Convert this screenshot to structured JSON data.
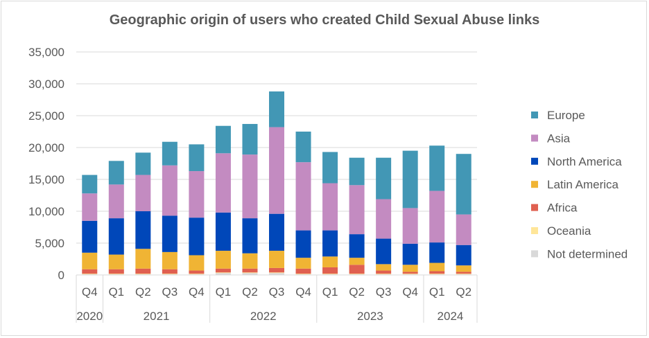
{
  "chart_data": {
    "type": "bar",
    "stacked": true,
    "title": "Geographic origin of users who created Child Sexual Abuse links",
    "categories": [
      "Q4",
      "Q1",
      "Q2",
      "Q3",
      "Q4",
      "Q1",
      "Q2",
      "Q3",
      "Q4",
      "Q1",
      "Q2",
      "Q3",
      "Q4",
      "Q1",
      "Q2"
    ],
    "year_groups": [
      {
        "label": "2020",
        "start": 0,
        "end": 0
      },
      {
        "label": "2021",
        "start": 1,
        "end": 4
      },
      {
        "label": "2022",
        "start": 5,
        "end": 8
      },
      {
        "label": "2023",
        "start": 9,
        "end": 12
      },
      {
        "label": "2024",
        "start": 13,
        "end": 14
      }
    ],
    "yticks": [
      "0",
      "5,000",
      "10,000",
      "15,000",
      "20,000",
      "25,000",
      "30,000",
      "35,000"
    ],
    "ylim": [
      0,
      35000
    ],
    "grid": true,
    "legend_position": "right",
    "series": [
      {
        "name": "Not determined",
        "color": "#d9d9d9",
        "values": [
          100,
          100,
          100,
          100,
          100,
          300,
          300,
          300,
          100,
          100,
          100,
          100,
          100,
          100,
          100
        ]
      },
      {
        "name": "Oceania",
        "color": "#ffe699",
        "values": [
          100,
          100,
          100,
          100,
          100,
          100,
          100,
          100,
          100,
          100,
          100,
          100,
          100,
          100,
          100
        ]
      },
      {
        "name": "Africa",
        "color": "#e06050",
        "values": [
          700,
          700,
          800,
          700,
          500,
          600,
          600,
          700,
          800,
          1000,
          1400,
          500,
          300,
          400,
          300
        ]
      },
      {
        "name": "Latin America",
        "color": "#f0b434",
        "values": [
          2600,
          2300,
          3100,
          2700,
          2400,
          2800,
          2400,
          2700,
          1700,
          1700,
          1100,
          1000,
          1100,
          1300,
          1000
        ]
      },
      {
        "name": "North America",
        "color": "#0047b9",
        "values": [
          5000,
          5700,
          5900,
          5700,
          5900,
          6000,
          5500,
          5800,
          4300,
          4100,
          3700,
          4000,
          3300,
          3200,
          3200
        ]
      },
      {
        "name": "Asia",
        "color": "#c38bc1",
        "values": [
          4300,
          5300,
          5700,
          7900,
          7300,
          9300,
          10000,
          13600,
          10700,
          7400,
          7700,
          6200,
          5600,
          8100,
          4800
        ]
      },
      {
        "name": "Europe",
        "color": "#4297b5",
        "values": [
          2900,
          3700,
          3500,
          3700,
          4200,
          4300,
          4800,
          5600,
          4800,
          4900,
          4300,
          6500,
          9000,
          7100,
          9500
        ]
      }
    ],
    "legend_order": [
      "Europe",
      "Asia",
      "North America",
      "Latin America",
      "Africa",
      "Oceania",
      "Not determined"
    ]
  }
}
